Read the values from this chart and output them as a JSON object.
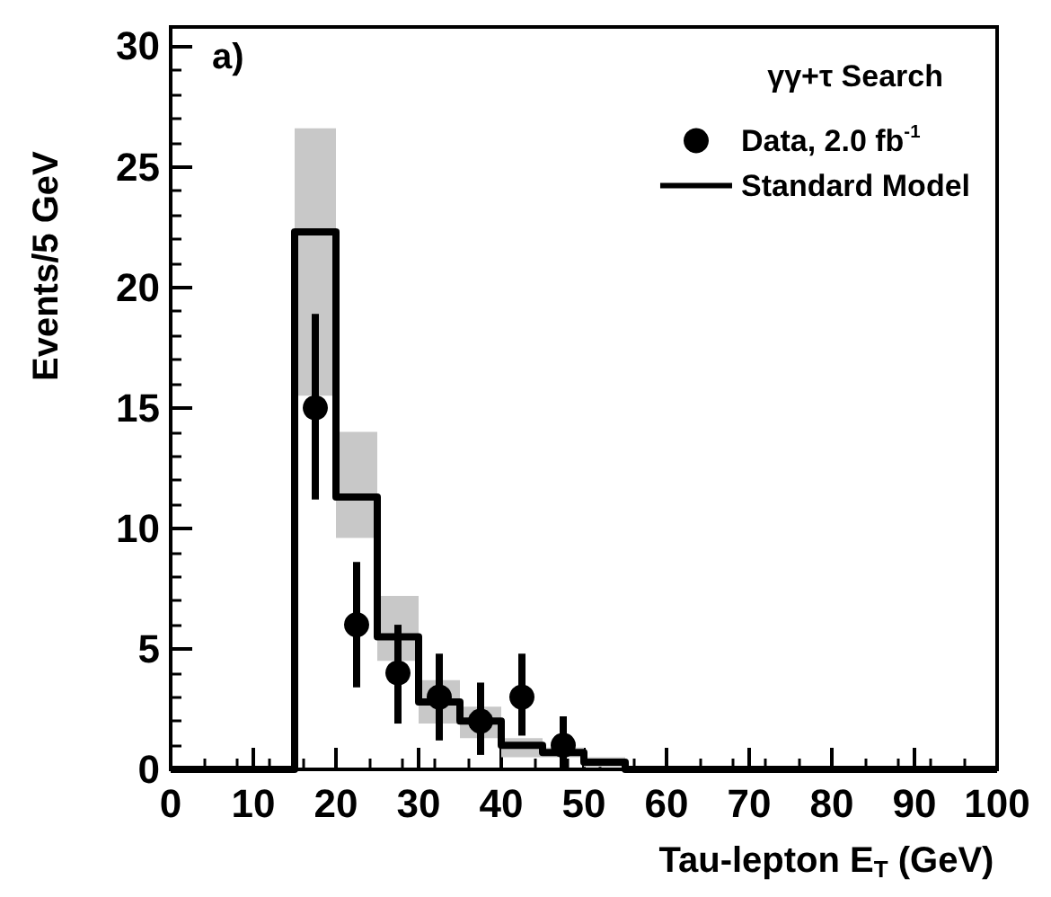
{
  "chart_data": {
    "type": "step",
    "xlabel": "Tau-lepton E$_{T}$ (GeV)",
    "ylabel": "Events/5 GeV",
    "legend_title": "γγ+τ Search",
    "annotations": [
      "a)"
    ],
    "series": [
      {
        "name": "Data, 2.0 fb$^{-1}$",
        "type": "scatter",
        "marker": "circle",
        "color": "#000000",
        "x": [
          17.5,
          22.5,
          27.5,
          32.5,
          37.5,
          42.5,
          47.5
        ],
        "values": [
          15,
          6,
          4,
          3,
          2,
          3,
          1
        ],
        "errors": [
          [
            11.2,
            18.9
          ],
          [
            3.4,
            8.6
          ],
          [
            1.9,
            6
          ],
          [
            1.2,
            4.8
          ],
          [
            0.6,
            3.6
          ],
          [
            1.4,
            4.8
          ],
          [
            0,
            2.2
          ]
        ]
      },
      {
        "name": "Standard Model",
        "marker": "none",
        "color": "#000000",
        "x": [
          0,
          15,
          20,
          25,
          30,
          35,
          40,
          45,
          50,
          55,
          100
        ],
        "values": [
          0,
          22.3,
          11.3,
          5.5,
          2.8,
          2,
          1,
          0.7,
          0.3,
          0,
          0
        ],
        "lower": [
          null,
          15.5,
          9.6,
          4.5,
          1.9,
          1.3,
          0.5,
          0.5,
          0.1,
          0,
          null
        ],
        "upper": [
          null,
          26.6,
          14,
          7.2,
          3.7,
          2.6,
          1.3,
          0.9,
          0.5,
          0,
          null
        ]
      }
    ],
    "xlim": [
      0,
      100
    ],
    "xticks": [
      0,
      10,
      20,
      30,
      40,
      50,
      60,
      70,
      80,
      90,
      100
    ],
    "ylim": [
      0,
      30.8
    ],
    "yticks": [
      0,
      5,
      10,
      15,
      20,
      25,
      30
    ],
    "legend": "top right",
    "grid": false
  }
}
